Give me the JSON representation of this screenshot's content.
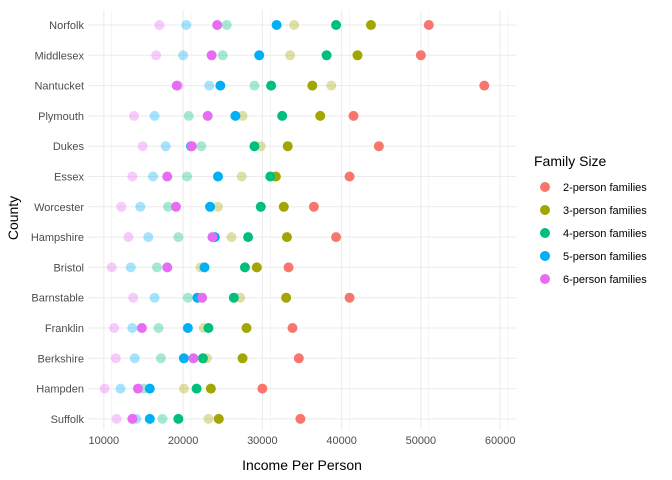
{
  "chart_data": {
    "type": "scatter",
    "xlabel": "Income Per Person",
    "ylabel": "County",
    "xlim": [
      8000,
      62000
    ],
    "x_ticks": [
      10000,
      20000,
      30000,
      40000,
      50000,
      60000
    ],
    "x_tick_labels": [
      "10000",
      "20000",
      "30000",
      "40000",
      "50000",
      "60000"
    ],
    "grid": true,
    "legend": {
      "title": "Family Size",
      "placement": "right"
    },
    "categories": [
      "Norfolk",
      "Middlesex",
      "Nantucket",
      "Plymouth",
      "Dukes",
      "Essex",
      "Worcester",
      "Hampshire",
      "Bristol",
      "Barnstable",
      "Franklin",
      "Berkshire",
      "Hampden",
      "Suffolk"
    ],
    "series": [
      {
        "name": "2-person families",
        "color": "#F8766D",
        "values": [
          51000,
          50000,
          58000,
          41500,
          44700,
          41000,
          36500,
          39300,
          33300,
          41000,
          33800,
          34600,
          30000,
          34800
        ]
      },
      {
        "name": "3-person families",
        "color": "#A3A500",
        "values": [
          43700,
          42000,
          36300,
          37300,
          33200,
          31700,
          32700,
          33100,
          29300,
          33000,
          28000,
          27500,
          23500,
          24500
        ]
      },
      {
        "name": "4-person families",
        "color": "#00BF7D",
        "values": [
          39300,
          38100,
          31100,
          32500,
          29000,
          31000,
          29800,
          28200,
          27800,
          26400,
          23200,
          22500,
          21700,
          19400
        ]
      },
      {
        "name": "5-person families",
        "color": "#00B0F6",
        "values": [
          31800,
          29600,
          24700,
          26600,
          21000,
          24400,
          23400,
          24000,
          22700,
          21800,
          20600,
          20100,
          15800,
          15800
        ]
      },
      {
        "name": "6-person families",
        "color": "#E76BF3",
        "values": [
          24300,
          23600,
          19200,
          23100,
          21100,
          18000,
          19100,
          23700,
          18000,
          22400,
          14800,
          21300,
          14300,
          13600
        ]
      }
    ],
    "faded_series": [
      {
        "name": "3-person families",
        "color": "#A3A500",
        "values": [
          34000,
          33500,
          38700,
          27500,
          29800,
          27400,
          24400,
          26100,
          22200,
          27200,
          22600,
          23000,
          20100,
          23200
        ]
      },
      {
        "name": "4-person families",
        "color": "#00BF7D",
        "values": [
          25500,
          25000,
          29000,
          20700,
          22300,
          20500,
          18100,
          19400,
          16700,
          20600,
          16900,
          17200,
          15000,
          17400
        ]
      },
      {
        "name": "5-person families",
        "color": "#00B0F6",
        "values": [
          20400,
          20000,
          23300,
          16400,
          17800,
          16200,
          14600,
          15600,
          13400,
          16400,
          13600,
          13900,
          12100,
          14100
        ]
      },
      {
        "name": "6-person families",
        "color": "#E76BF3",
        "values": [
          17000,
          16600,
          19400,
          13800,
          14900,
          13600,
          12200,
          13100,
          11000,
          13700,
          11300,
          11500,
          10100,
          11600
        ]
      }
    ]
  }
}
